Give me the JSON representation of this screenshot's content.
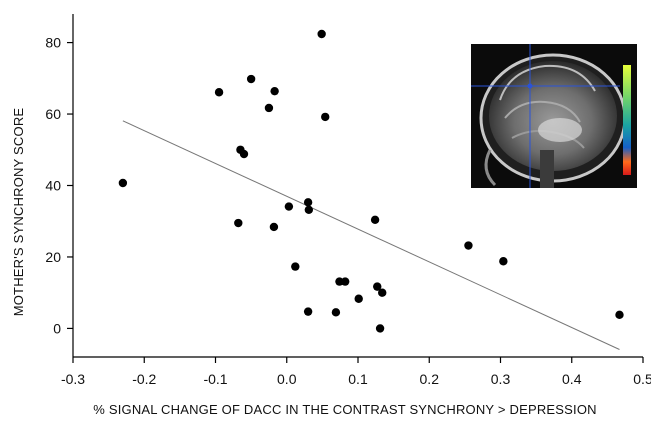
{
  "chart_data": {
    "type": "scatter",
    "xlabel": "% SIGNAL CHANGE  OF DACC IN THE CONTRAST SYNCHRONY > DEPRESSION",
    "ylabel": "MOTHER'S SYNCHRONY SCORE",
    "xlim": [
      -0.3,
      0.5
    ],
    "ylim": [
      -8,
      88
    ],
    "x_ticks": [
      "-0.3",
      "-0.2",
      "-0.1",
      "0.0",
      "0.1",
      "0.2",
      "0.3",
      "0.4",
      "0.5"
    ],
    "y_ticks": [
      "0",
      "20",
      "40",
      "60",
      "80"
    ],
    "grid": false,
    "points": [
      {
        "x": -0.23,
        "y": 40.7
      },
      {
        "x": -0.095,
        "y": 66.1
      },
      {
        "x": -0.05,
        "y": 69.8
      },
      {
        "x": -0.065,
        "y": 50.0
      },
      {
        "x": -0.06,
        "y": 48.8
      },
      {
        "x": -0.068,
        "y": 29.5
      },
      {
        "x": -0.025,
        "y": 61.7
      },
      {
        "x": -0.017,
        "y": 66.4
      },
      {
        "x": -0.018,
        "y": 28.4
      },
      {
        "x": 0.003,
        "y": 34.1
      },
      {
        "x": 0.012,
        "y": 17.3
      },
      {
        "x": 0.03,
        "y": 35.3
      },
      {
        "x": 0.031,
        "y": 33.2
      },
      {
        "x": 0.03,
        "y": 4.7
      },
      {
        "x": 0.049,
        "y": 82.4
      },
      {
        "x": 0.054,
        "y": 59.2
      },
      {
        "x": 0.069,
        "y": 4.5
      },
      {
        "x": 0.074,
        "y": 13.1
      },
      {
        "x": 0.082,
        "y": 13.1
      },
      {
        "x": 0.101,
        "y": 8.3
      },
      {
        "x": 0.124,
        "y": 30.4
      },
      {
        "x": 0.127,
        "y": 11.7
      },
      {
        "x": 0.131,
        "y": 0.0
      },
      {
        "x": 0.134,
        "y": 10.0
      },
      {
        "x": 0.255,
        "y": 23.2
      },
      {
        "x": 0.304,
        "y": 18.8
      },
      {
        "x": 0.467,
        "y": 3.8
      }
    ],
    "trendline": {
      "x": [
        -0.23,
        0.467
      ],
      "y": [
        58.1,
        -5.9
      ]
    },
    "inset": "brain MRI sagittal slice with color bar"
  }
}
